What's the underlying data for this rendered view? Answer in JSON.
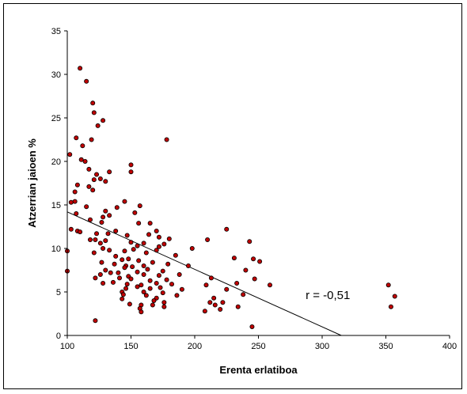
{
  "chart_data": {
    "type": "scatter",
    "xlabel": "Erenta erlatiboa",
    "ylabel": "Atzerrian jaioen %",
    "xlim": [
      100,
      400
    ],
    "ylim": [
      0,
      35
    ],
    "x_ticks": [
      "100",
      "150",
      "200",
      "250",
      "300",
      "350",
      "400"
    ],
    "y_ticks": [
      "0",
      "5",
      "10",
      "15",
      "20",
      "25",
      "30",
      "35"
    ],
    "grid": false,
    "legend": "none",
    "marker_color": "#C00000",
    "marker_edge": "#000000",
    "annotation": "r = -0,51",
    "trendline": {
      "x": [
        100,
        315
      ],
      "y": [
        14.2,
        0
      ]
    },
    "points": [
      [
        110,
        30.7
      ],
      [
        115,
        29.2
      ],
      [
        120,
        26.7
      ],
      [
        121,
        25.6
      ],
      [
        128,
        24.7
      ],
      [
        124,
        24.1
      ],
      [
        107,
        22.7
      ],
      [
        178,
        22.5
      ],
      [
        119,
        22.5
      ],
      [
        102,
        20.8
      ],
      [
        112,
        21.8
      ],
      [
        111,
        20.2
      ],
      [
        114,
        20.0
      ],
      [
        150,
        19.6
      ],
      [
        150,
        18.8
      ],
      [
        117,
        19.1
      ],
      [
        123,
        18.5
      ],
      [
        126,
        18.0
      ],
      [
        121,
        17.9
      ],
      [
        130,
        17.7
      ],
      [
        133,
        18.8
      ],
      [
        108,
        17.3
      ],
      [
        117,
        17.1
      ],
      [
        120,
        16.7
      ],
      [
        106,
        16.5
      ],
      [
        103,
        15.3
      ],
      [
        106,
        15.4
      ],
      [
        145,
        15.4
      ],
      [
        157,
        14.9
      ],
      [
        115,
        14.8
      ],
      [
        139,
        14.7
      ],
      [
        130,
        14.3
      ],
      [
        153,
        14.1
      ],
      [
        107,
        14.0
      ],
      [
        128,
        13.6
      ],
      [
        133,
        13.8
      ],
      [
        127,
        13.0
      ],
      [
        118,
        13.3
      ],
      [
        156,
        12.9
      ],
      [
        165,
        12.9
      ],
      [
        108,
        12.0
      ],
      [
        103,
        12.2
      ],
      [
        138,
        12.0
      ],
      [
        110,
        11.9
      ],
      [
        123,
        11.7
      ],
      [
        132,
        11.7
      ],
      [
        147,
        11.5
      ],
      [
        164,
        11.6
      ],
      [
        170,
        12.0
      ],
      [
        172,
        11.3
      ],
      [
        180,
        11.1
      ],
      [
        210,
        11.0
      ],
      [
        225,
        12.2
      ],
      [
        243,
        10.8
      ],
      [
        118,
        11.0
      ],
      [
        122,
        11.0
      ],
      [
        126,
        10.6
      ],
      [
        130,
        10.9
      ],
      [
        150,
        10.7
      ],
      [
        155,
        10.3
      ],
      [
        160,
        10.6
      ],
      [
        172,
        10.2
      ],
      [
        176,
        10.5
      ],
      [
        198,
        10.0
      ],
      [
        128,
        10.0
      ],
      [
        133,
        9.8
      ],
      [
        145,
        9.7
      ],
      [
        152,
        9.9
      ],
      [
        162,
        9.5
      ],
      [
        170,
        9.8
      ],
      [
        185,
        9.2
      ],
      [
        100,
        9.7
      ],
      [
        121,
        9.5
      ],
      [
        138,
        9.1
      ],
      [
        143,
        8.7
      ],
      [
        148,
        8.8
      ],
      [
        156,
        8.6
      ],
      [
        167,
        8.4
      ],
      [
        195,
        8.0
      ],
      [
        231,
        8.9
      ],
      [
        246,
        8.8
      ],
      [
        251,
        8.5
      ],
      [
        127,
        8.4
      ],
      [
        137,
        8.2
      ],
      [
        146,
        8.0
      ],
      [
        151,
        7.9
      ],
      [
        160,
        8.0
      ],
      [
        179,
        8.2
      ],
      [
        240,
        7.5
      ],
      [
        130,
        7.5
      ],
      [
        140,
        7.2
      ],
      [
        145,
        7.8
      ],
      [
        155,
        7.3
      ],
      [
        163,
        7.6
      ],
      [
        175,
        7.4
      ],
      [
        188,
        7.0
      ],
      [
        100,
        7.4
      ],
      [
        126,
        7.0
      ],
      [
        134,
        7.2
      ],
      [
        148,
        6.8
      ],
      [
        160,
        7.0
      ],
      [
        172,
        6.9
      ],
      [
        122,
        6.6
      ],
      [
        141,
        6.6
      ],
      [
        150,
        6.5
      ],
      [
        165,
        6.3
      ],
      [
        178,
        6.4
      ],
      [
        213,
        6.6
      ],
      [
        247,
        6.5
      ],
      [
        128,
        6.0
      ],
      [
        136,
        6.1
      ],
      [
        147,
        5.9
      ],
      [
        158,
        5.8
      ],
      [
        170,
        6.0
      ],
      [
        182,
        5.9
      ],
      [
        209,
        5.8
      ],
      [
        233,
        6.0
      ],
      [
        259,
        5.8
      ],
      [
        352,
        5.8
      ],
      [
        146,
        5.4
      ],
      [
        155,
        5.6
      ],
      [
        165,
        5.4
      ],
      [
        173,
        5.5
      ],
      [
        190,
        5.3
      ],
      [
        143,
        5.0
      ],
      [
        160,
        5.0
      ],
      [
        175,
        4.9
      ],
      [
        225,
        5.3
      ],
      [
        238,
        4.7
      ],
      [
        144,
        4.7
      ],
      [
        162,
        4.6
      ],
      [
        170,
        4.3
      ],
      [
        186,
        4.6
      ],
      [
        215,
        4.3
      ],
      [
        357,
        4.5
      ],
      [
        143,
        4.2
      ],
      [
        168,
        4.0
      ],
      [
        176,
        3.8
      ],
      [
        212,
        3.8
      ],
      [
        216,
        3.5
      ],
      [
        222,
        3.8
      ],
      [
        149,
        3.6
      ],
      [
        158,
        3.5
      ],
      [
        167,
        3.5
      ],
      [
        157,
        3.1
      ],
      [
        176,
        3.3
      ],
      [
        234,
        3.3
      ],
      [
        354,
        3.3
      ],
      [
        158,
        2.7
      ],
      [
        208,
        2.8
      ],
      [
        220,
        3.0
      ],
      [
        122,
        1.7
      ],
      [
        245,
        1.0
      ]
    ]
  }
}
